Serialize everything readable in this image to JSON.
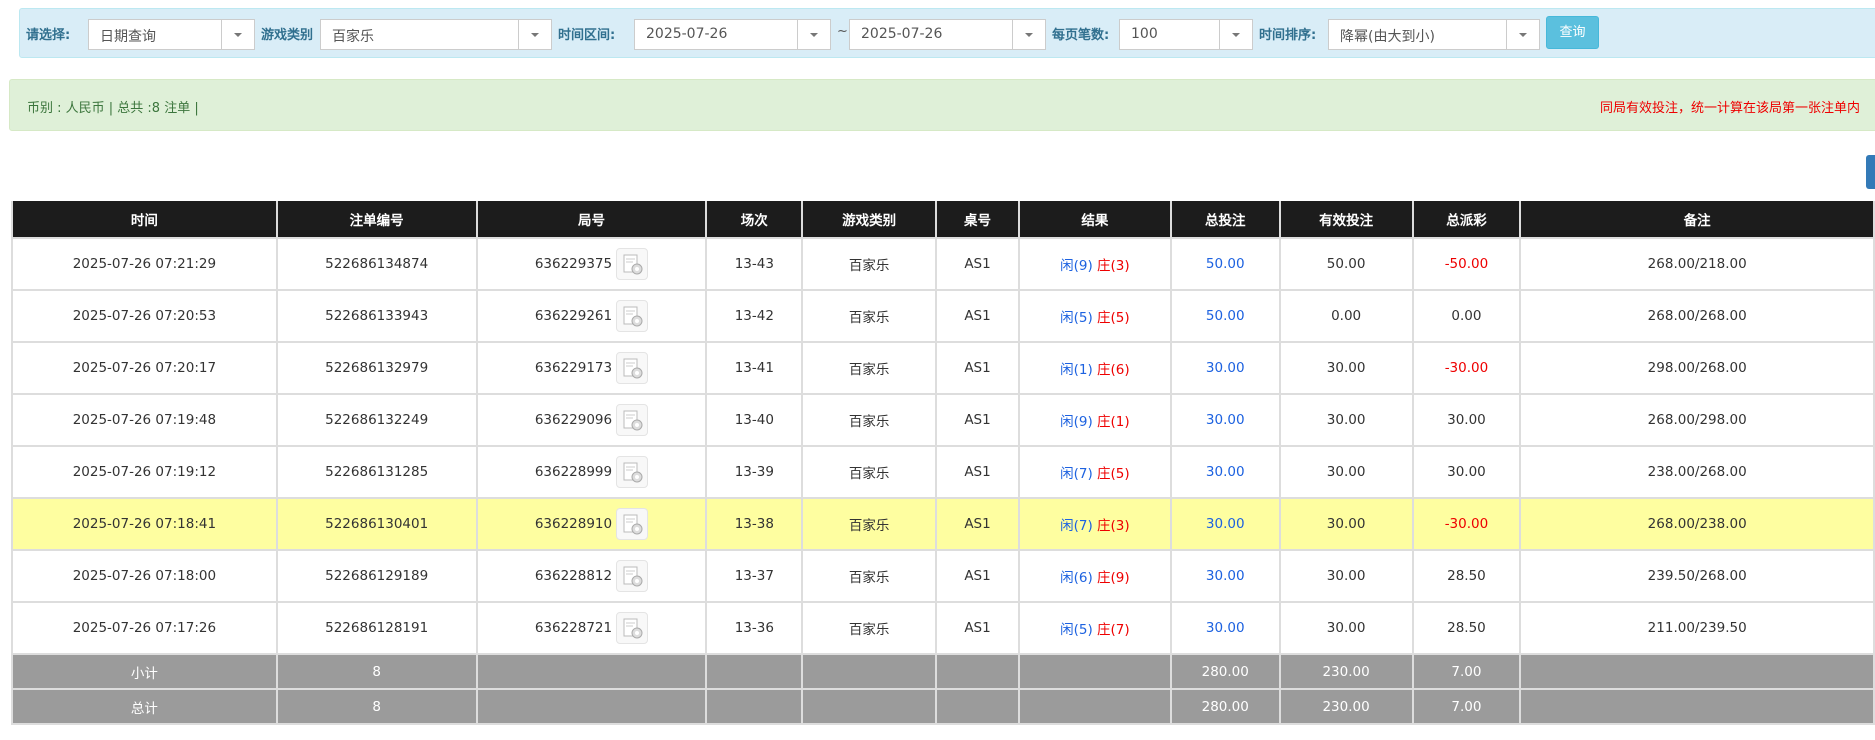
{
  "filter": {
    "select_label": "请选择:",
    "select_value": "日期查询",
    "game_type_label": "游戏类别",
    "game_type_value": "百家乐",
    "date_range_label": "时间区间:",
    "date_from": "2025-07-26",
    "date_separator": "~",
    "date_to": "2025-07-26",
    "page_size_label": "每页笔数:",
    "page_size_value": "100",
    "sort_label": "时间排序:",
    "sort_value": "降幂(由大到小)",
    "query_button": "查询"
  },
  "info": {
    "summary": "币别 : 人民币 | 总共 :8 注单 |",
    "notice": "同局有效投注，统一计算在该局第一张注单内"
  },
  "table": {
    "headers": [
      "时间",
      "注单编号",
      "局号",
      "场次",
      "游戏类别",
      "桌号",
      "结果",
      "总投注",
      "有效投注",
      "总派彩",
      "备注"
    ],
    "highlight_row": 5,
    "rows": [
      [
        "2025-07-26 07:21:29",
        "522686134874",
        "636229375",
        "13-43",
        "百家乐",
        "AS1",
        [
          "闲(9)",
          "庄(3)"
        ],
        "50.00",
        "50.00",
        "-50.00",
        "268.00/218.00"
      ],
      [
        "2025-07-26 07:20:53",
        "522686133943",
        "636229261",
        "13-42",
        "百家乐",
        "AS1",
        [
          "闲(5)",
          "庄(5)"
        ],
        "50.00",
        "0.00",
        "0.00",
        "268.00/268.00"
      ],
      [
        "2025-07-26 07:20:17",
        "522686132979",
        "636229173",
        "13-41",
        "百家乐",
        "AS1",
        [
          "闲(1)",
          "庄(6)"
        ],
        "30.00",
        "30.00",
        "-30.00",
        "298.00/268.00"
      ],
      [
        "2025-07-26 07:19:48",
        "522686132249",
        "636229096",
        "13-40",
        "百家乐",
        "AS1",
        [
          "闲(9)",
          "庄(1)"
        ],
        "30.00",
        "30.00",
        "30.00",
        "268.00/298.00"
      ],
      [
        "2025-07-26 07:19:12",
        "522686131285",
        "636228999",
        "13-39",
        "百家乐",
        "AS1",
        [
          "闲(7)",
          "庄(5)"
        ],
        "30.00",
        "30.00",
        "30.00",
        "238.00/268.00"
      ],
      [
        "2025-07-26 07:18:41",
        "522686130401",
        "636228910",
        "13-38",
        "百家乐",
        "AS1",
        [
          "闲(7)",
          "庄(3)"
        ],
        "30.00",
        "30.00",
        "-30.00",
        "268.00/238.00"
      ],
      [
        "2025-07-26 07:18:00",
        "522686129189",
        "636228812",
        "13-37",
        "百家乐",
        "AS1",
        [
          "闲(6)",
          "庄(9)"
        ],
        "30.00",
        "30.00",
        "28.50",
        "239.50/268.00"
      ],
      [
        "2025-07-26 07:17:26",
        "522686128191",
        "636228721",
        "13-36",
        "百家乐",
        "AS1",
        [
          "闲(5)",
          "庄(7)"
        ],
        "30.00",
        "30.00",
        "28.50",
        "211.00/239.50"
      ]
    ],
    "subtotal": {
      "label": "小计",
      "count": "8",
      "total_bet": "280.00",
      "valid_bet": "230.00",
      "payout": "7.00"
    },
    "total": {
      "label": "总计",
      "count": "8",
      "total_bet": "280.00",
      "valid_bet": "230.00",
      "payout": "7.00"
    }
  }
}
